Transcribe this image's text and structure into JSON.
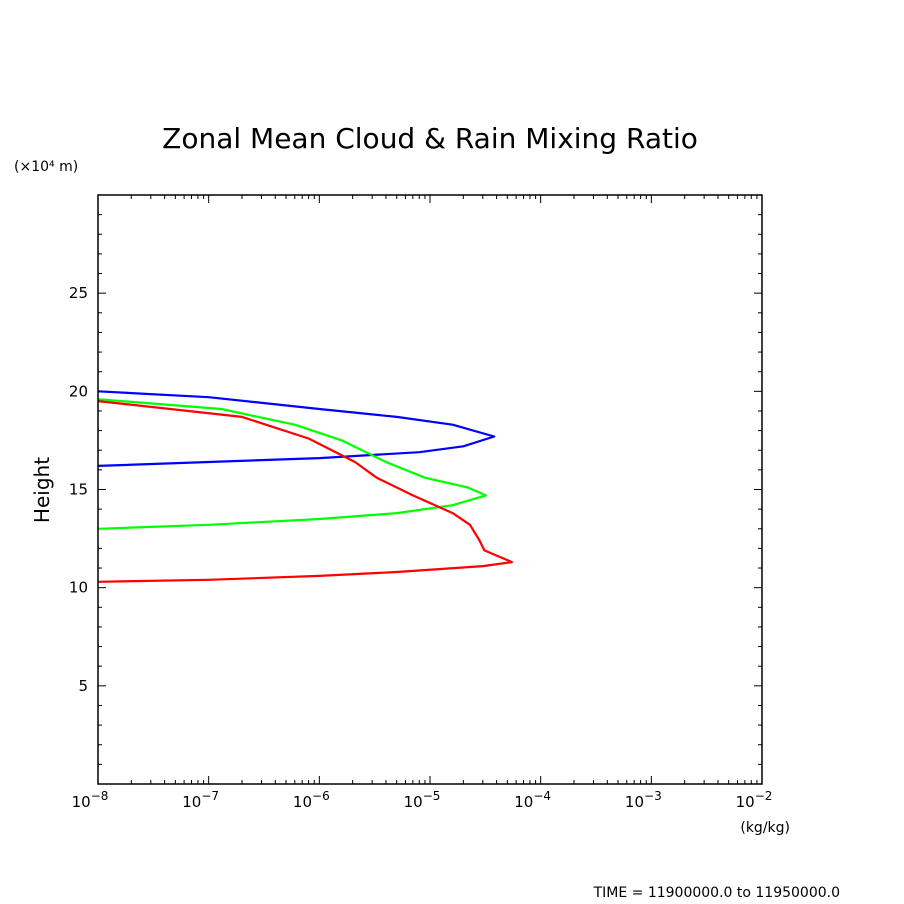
{
  "chart_data": {
    "type": "line",
    "title": "Zonal Mean Cloud & Rain Mixing Ratio",
    "xlabel": "(kg/kg)",
    "ylabel": "Height",
    "yunit": "(×10⁴ m)",
    "footer": "TIME = 11900000.0 to 11950000.0",
    "xscale": "log",
    "xlim": [
      1e-08,
      0.01
    ],
    "ylim": [
      0,
      30
    ],
    "xticks": [
      {
        "value": 1e-08,
        "base": "10",
        "exp": "−8"
      },
      {
        "value": 1e-07,
        "base": "10",
        "exp": "−7"
      },
      {
        "value": 1e-06,
        "base": "10",
        "exp": "−6"
      },
      {
        "value": 1e-05,
        "base": "10",
        "exp": "−5"
      },
      {
        "value": 0.0001,
        "base": "10",
        "exp": "−4"
      },
      {
        "value": 0.001,
        "base": "10",
        "exp": "−3"
      },
      {
        "value": 0.01,
        "base": "10",
        "exp": "−2"
      }
    ],
    "yticks": [
      5,
      10,
      15,
      20,
      25
    ],
    "series": [
      {
        "color": "#0000ff",
        "points": [
          [
            1e-08,
            20.0
          ],
          [
            1e-07,
            19.7
          ],
          [
            1e-06,
            19.1
          ],
          [
            5e-06,
            18.7
          ],
          [
            1.6e-05,
            18.3
          ],
          [
            3.8e-05,
            17.7
          ],
          [
            2e-05,
            17.2
          ],
          [
            8e-06,
            16.9
          ],
          [
            1e-06,
            16.6
          ],
          [
            1e-07,
            16.4
          ],
          [
            1e-08,
            16.2
          ]
        ]
      },
      {
        "color": "#00ff00",
        "points": [
          [
            1e-08,
            19.6
          ],
          [
            1.3e-07,
            19.1
          ],
          [
            6e-07,
            18.3
          ],
          [
            1.6e-06,
            17.5
          ],
          [
            4e-06,
            16.4
          ],
          [
            9e-06,
            15.6
          ],
          [
            2.2e-05,
            15.1
          ],
          [
            3.2e-05,
            14.7
          ],
          [
            1.6e-05,
            14.2
          ],
          [
            5e-06,
            13.8
          ],
          [
            1e-06,
            13.5
          ],
          [
            1e-07,
            13.2
          ],
          [
            1e-08,
            13.0
          ]
        ]
      },
      {
        "color": "#ff0000",
        "points": [
          [
            1e-08,
            19.5
          ],
          [
            2e-07,
            18.7
          ],
          [
            8e-07,
            17.6
          ],
          [
            2.1e-06,
            16.4
          ],
          [
            3.3e-06,
            15.6
          ],
          [
            7e-06,
            14.7
          ],
          [
            1.6e-05,
            13.8
          ],
          [
            2.3e-05,
            13.2
          ],
          [
            2.8e-05,
            12.4
          ],
          [
            3.1e-05,
            11.9
          ],
          [
            5.5e-05,
            11.3
          ],
          [
            3e-05,
            11.1
          ],
          [
            5e-06,
            10.8
          ],
          [
            1e-06,
            10.6
          ],
          [
            1e-07,
            10.4
          ],
          [
            1e-08,
            10.3
          ]
        ]
      }
    ]
  }
}
